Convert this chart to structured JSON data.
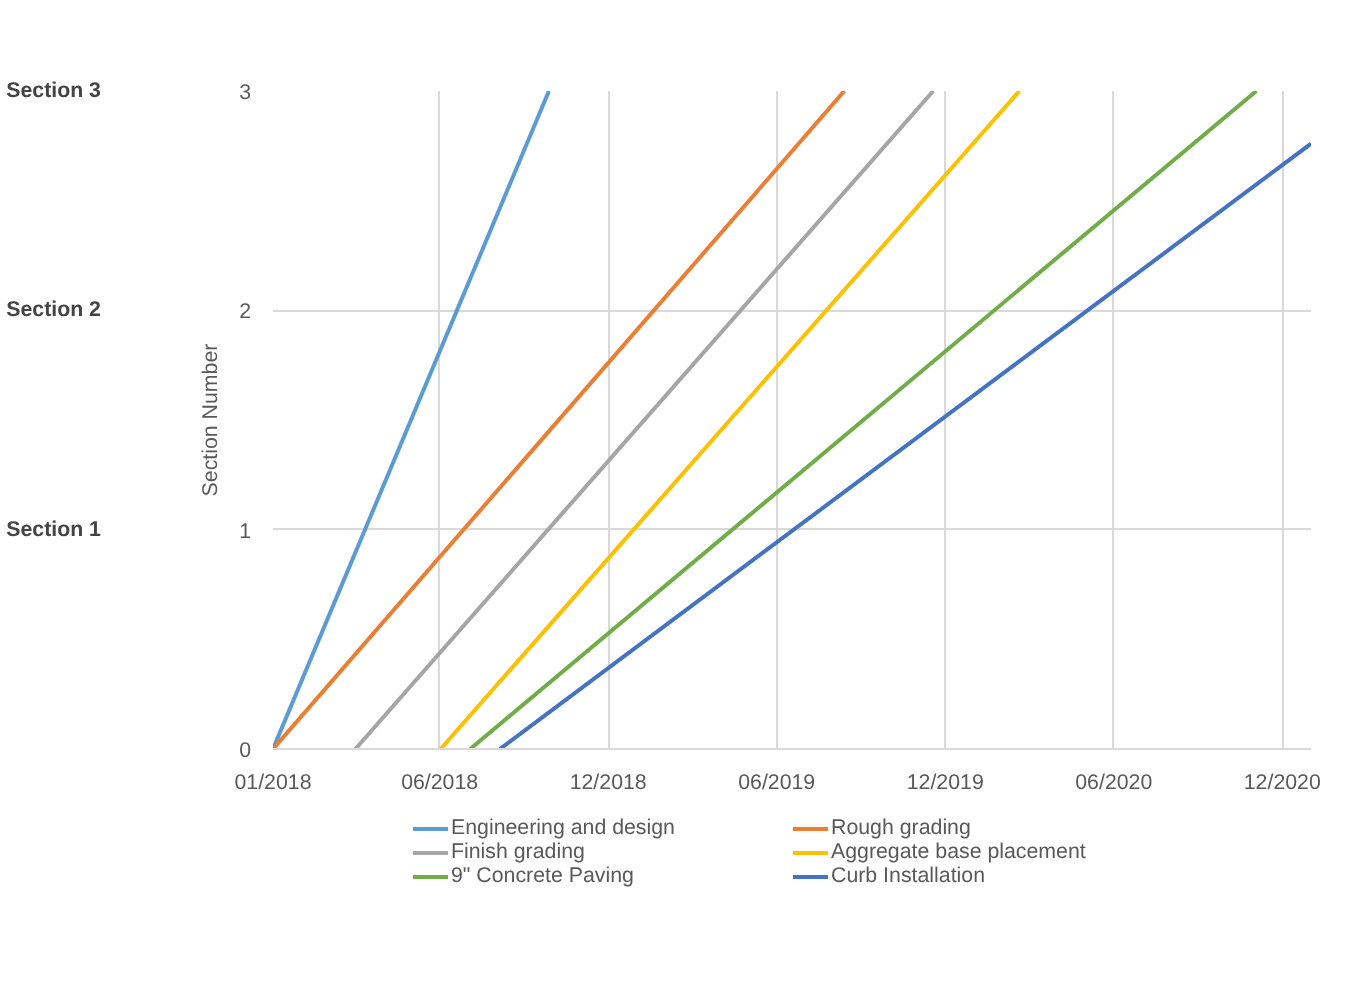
{
  "chart_data": {
    "type": "line",
    "ylabel": "Section Number",
    "xlim": [
      "2018-01-01",
      "2021-01-26"
    ],
    "ylim": [
      0,
      3
    ],
    "yticks": [
      0,
      1,
      2,
      3
    ],
    "xticks": [
      {
        "value": "2018-01-01",
        "label": "01/2018"
      },
      {
        "value": "2018-06-30",
        "label": "06/2018"
      },
      {
        "value": "2018-12-29",
        "label": "12/2018"
      },
      {
        "value": "2019-06-29",
        "label": "06/2019"
      },
      {
        "value": "2019-12-28",
        "label": "12/2019"
      },
      {
        "value": "2020-06-27",
        "label": "06/2020"
      },
      {
        "value": "2020-12-26",
        "label": "12/2020"
      }
    ],
    "series": [
      {
        "name": "Engineering and design",
        "color": "#5b9bd5",
        "x": [
          "2018-01-01",
          "2018-10-26"
        ],
        "values": [
          0,
          3
        ]
      },
      {
        "name": "Rough grading",
        "color": "#ed7d31",
        "x": [
          "2018-01-01",
          "2019-09-10"
        ],
        "values": [
          0,
          3
        ]
      },
      {
        "name": "Finish grading",
        "color": "#a5a5a5",
        "x": [
          "2018-03-31",
          "2019-12-15"
        ],
        "values": [
          0,
          3
        ]
      },
      {
        "name": "Aggregate base placement",
        "color": "#ffc000",
        "x": [
          "2018-07-01",
          "2020-03-17"
        ],
        "values": [
          0,
          3
        ]
      },
      {
        "name": "9\" Concrete Paving",
        "color": "#70ad47",
        "x": [
          "2018-08-02",
          "2020-11-28"
        ],
        "values": [
          0,
          3
        ]
      },
      {
        "name": "Curb Installation",
        "color": "#4472c4",
        "x": [
          "2018-09-03",
          "2021-01-26"
        ],
        "values": [
          0,
          2.76
        ]
      }
    ],
    "annotations": [
      "Section 1",
      "Section 2",
      "Section 3"
    ],
    "grid": true,
    "legend": "bottom",
    "line_style": "solid",
    "marker": "none"
  }
}
